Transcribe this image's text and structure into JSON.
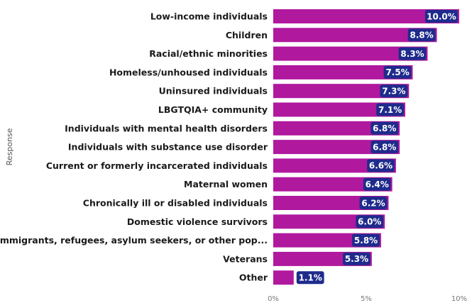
{
  "chart_data": {
    "type": "bar",
    "orientation": "horizontal",
    "ylabel": "Response",
    "xlabel": "",
    "xlim": [
      0,
      10
    ],
    "x_ticks": [
      "0%",
      "5%",
      "10%"
    ],
    "grid": false,
    "categories": [
      "Low-income individuals",
      "Children",
      "Racial/ethnic minorities",
      "Homeless/unhoused individuals",
      "Uninsured individuals",
      "LBGTQIA+ community",
      "Individuals with mental health disorders",
      "Individuals with substance use disorder",
      "Current or formerly incarcerated individuals",
      "Maternal women",
      "Chronically ill or disabled individuals",
      "Domestic violence survivors",
      "Immigrants, refugees, asylum seekers, or other pop...",
      "Veterans",
      "Other"
    ],
    "values": [
      10.0,
      8.8,
      8.3,
      7.5,
      7.3,
      7.1,
      6.8,
      6.8,
      6.6,
      6.4,
      6.2,
      6.0,
      5.8,
      5.3,
      1.1
    ],
    "value_labels": [
      "10.0%",
      "8.8%",
      "8.3%",
      "7.5%",
      "7.3%",
      "7.1%",
      "6.8%",
      "6.8%",
      "6.6%",
      "6.4%",
      "6.2%",
      "6.0%",
      "5.8%",
      "5.3%",
      "1.1%"
    ],
    "colors": {
      "bar": "#b0189e",
      "label_bg": "#1f2b8c"
    }
  }
}
